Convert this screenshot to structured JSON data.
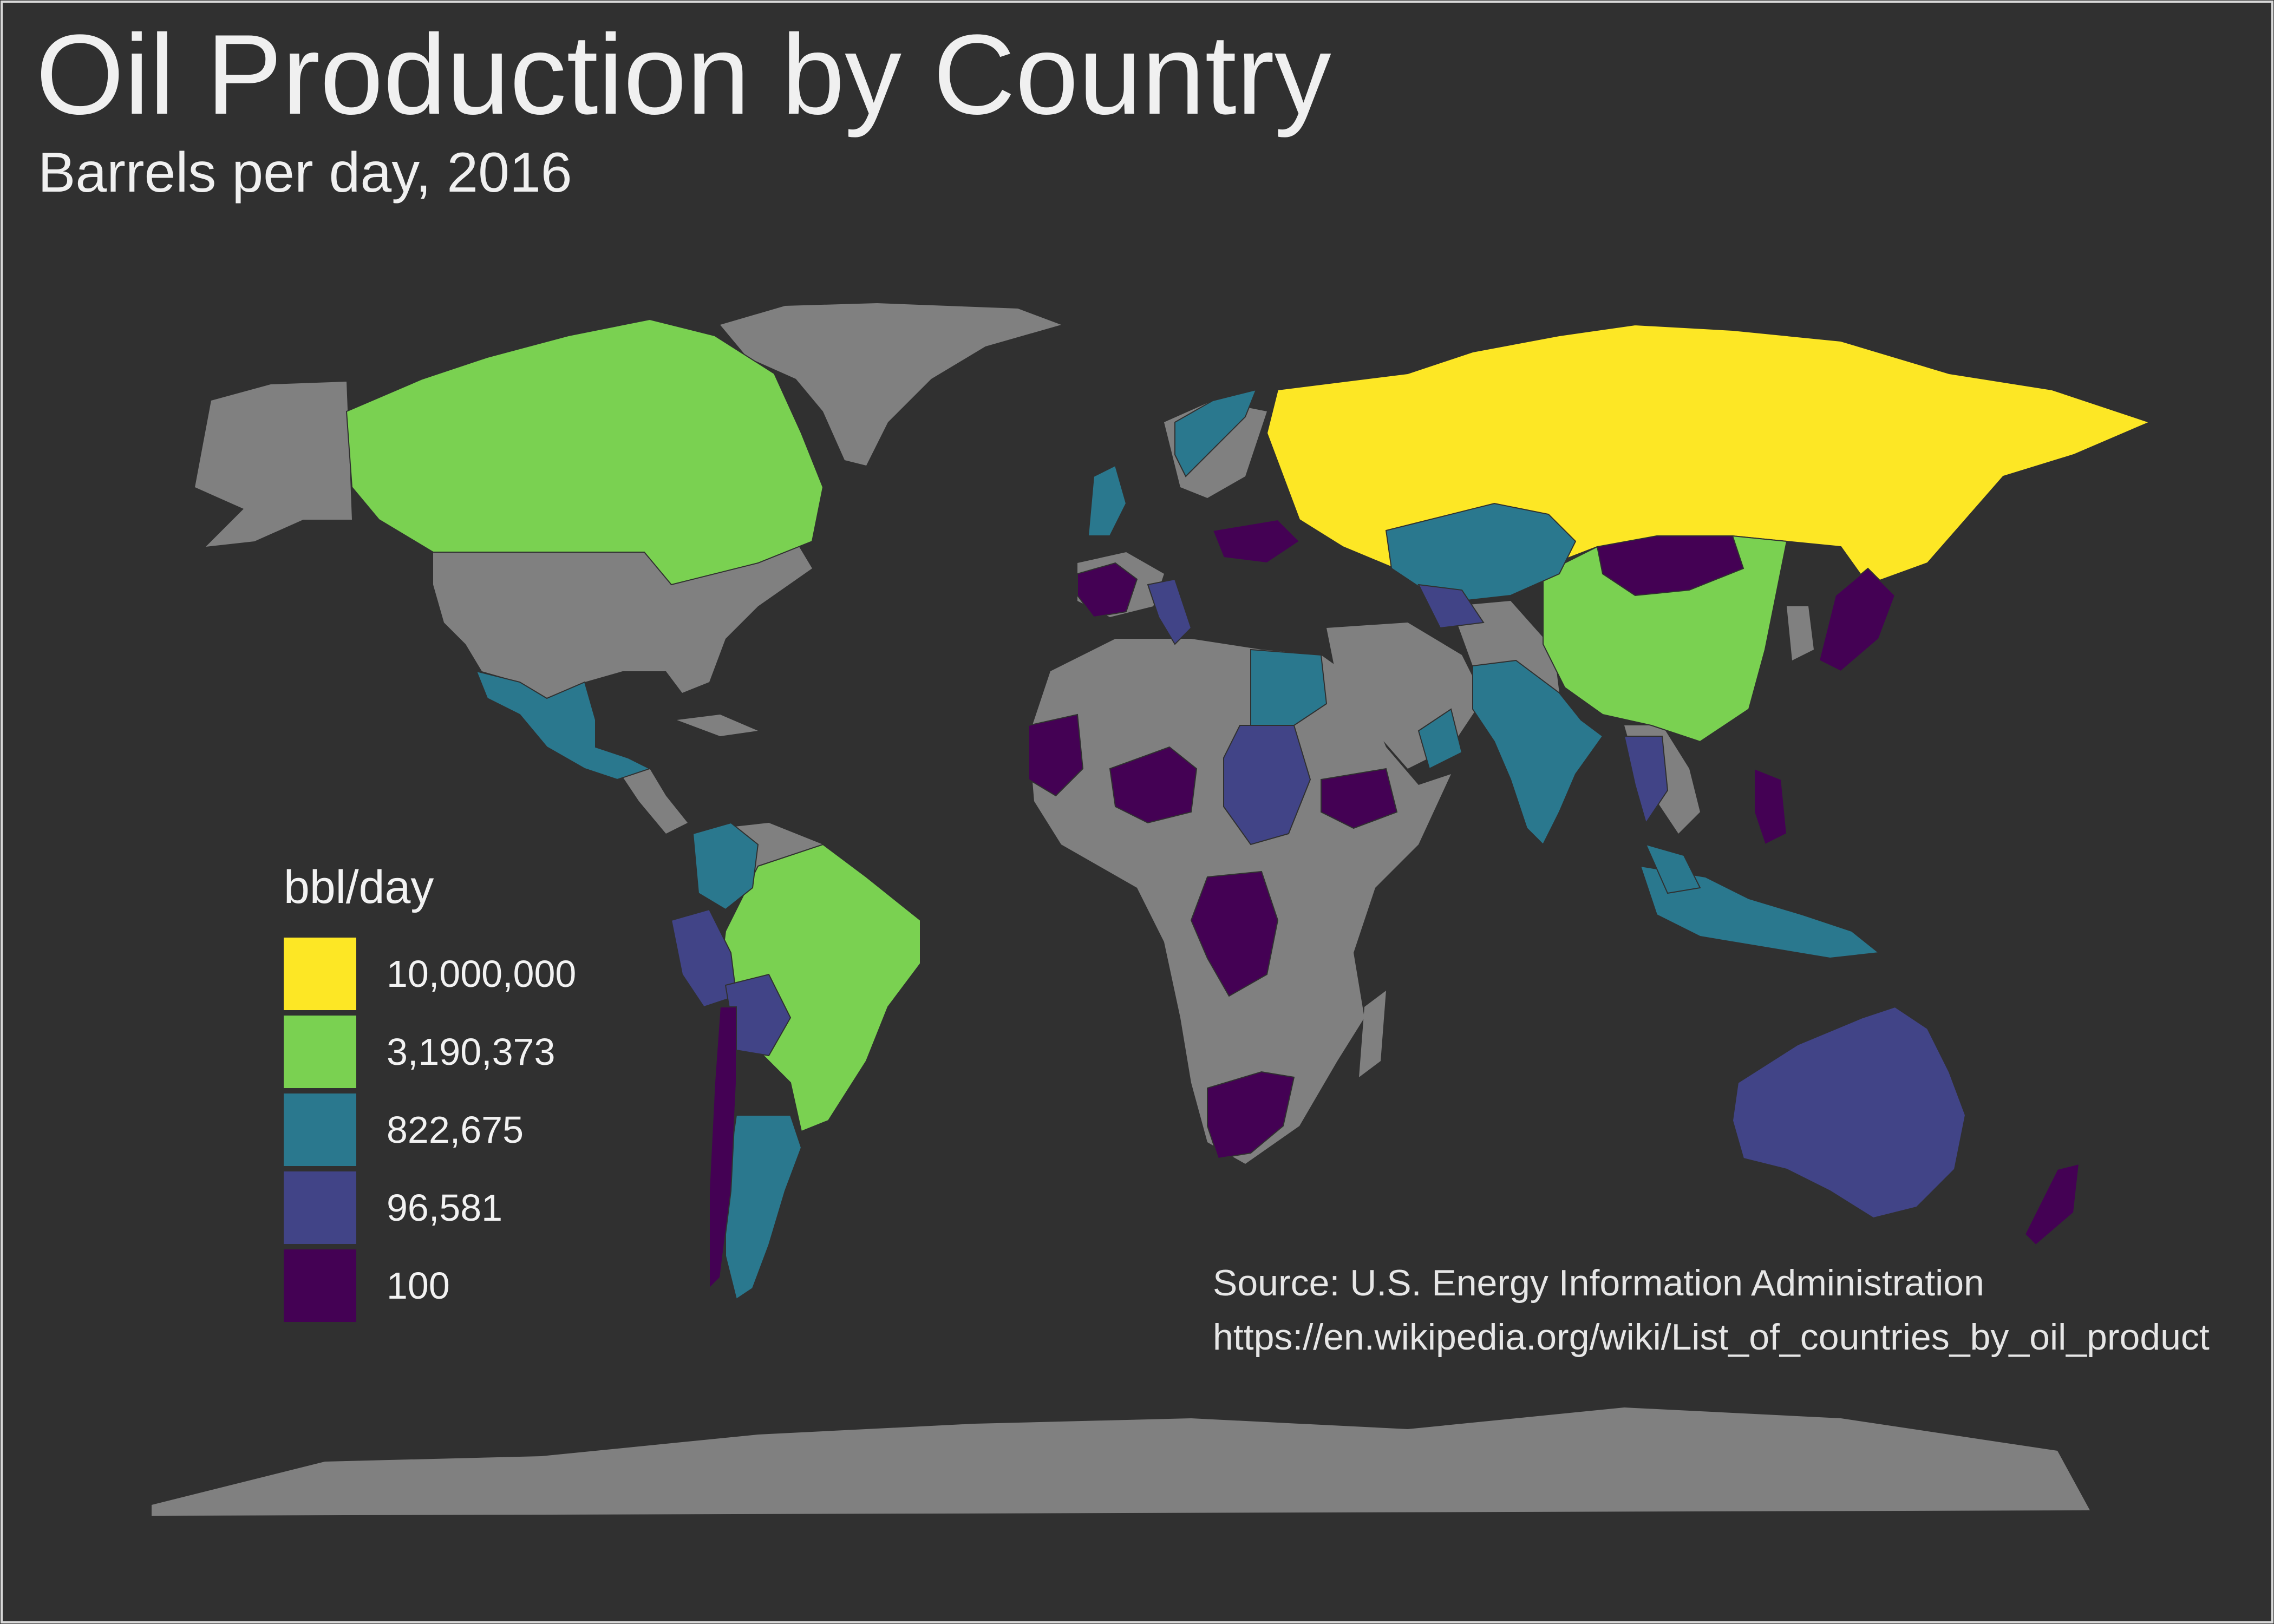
{
  "title": "Oil Production by Country",
  "subtitle": "Barrels per day, 2016",
  "legend": {
    "title": "bbl/day",
    "items": [
      {
        "label": "10,000,000",
        "color": "#fde725"
      },
      {
        "label": "3,190,373",
        "color": "#7ad151"
      },
      {
        "label": "822,675",
        "color": "#2a788e"
      },
      {
        "label": "96,581",
        "color": "#414487"
      },
      {
        "label": "100",
        "color": "#440154"
      }
    ]
  },
  "caption": {
    "source": "Source: U.S. Energy Information Administration",
    "url": "https://en.wikipedia.org/wiki/List_of_countries_by_oil_product"
  },
  "colors": {
    "background": "#303030",
    "no_data": "#808080",
    "frame": "#d9d9d9"
  },
  "map": {
    "projection": "world, equirectangular-style",
    "regions": [
      {
        "name": "Russia",
        "class": "10,000,000"
      },
      {
        "name": "Canada",
        "class": "3,190,373"
      },
      {
        "name": "China",
        "class": "3,190,373"
      },
      {
        "name": "Brazil",
        "class": "3,190,373"
      },
      {
        "name": "Mexico",
        "class": "822,675"
      },
      {
        "name": "Kazakhstan",
        "class": "822,675"
      },
      {
        "name": "India",
        "class": "822,675"
      },
      {
        "name": "Argentina",
        "class": "822,675"
      },
      {
        "name": "Colombia",
        "class": "822,675"
      },
      {
        "name": "Indonesia",
        "class": "822,675"
      },
      {
        "name": "Malaysia",
        "class": "822,675"
      },
      {
        "name": "Egypt",
        "class": "822,675"
      },
      {
        "name": "Norway",
        "class": "822,675"
      },
      {
        "name": "United Kingdom",
        "class": "822,675"
      },
      {
        "name": "Oman",
        "class": "822,675"
      },
      {
        "name": "Australia",
        "class": "96,581"
      },
      {
        "name": "Sudan",
        "class": "96,581"
      },
      {
        "name": "Italy",
        "class": "96,581"
      },
      {
        "name": "Thailand",
        "class": "96,581"
      },
      {
        "name": "Peru",
        "class": "96,581"
      },
      {
        "name": "Bolivia",
        "class": "96,581"
      },
      {
        "name": "Turkmenistan",
        "class": "96,581"
      },
      {
        "name": "Mongolia",
        "class": "100"
      },
      {
        "name": "South Africa",
        "class": "100"
      },
      {
        "name": "Niger",
        "class": "100"
      },
      {
        "name": "Dem. Rep. Congo",
        "class": "100"
      },
      {
        "name": "Japan",
        "class": "100"
      },
      {
        "name": "Mauritania",
        "class": "100"
      },
      {
        "name": "Chile",
        "class": "100"
      },
      {
        "name": "New Zealand",
        "class": "100"
      },
      {
        "name": "France",
        "class": "100"
      },
      {
        "name": "Ukraine",
        "class": "100"
      },
      {
        "name": "Philippines",
        "class": "100"
      },
      {
        "name": "Ethiopia",
        "class": "100"
      }
    ]
  }
}
